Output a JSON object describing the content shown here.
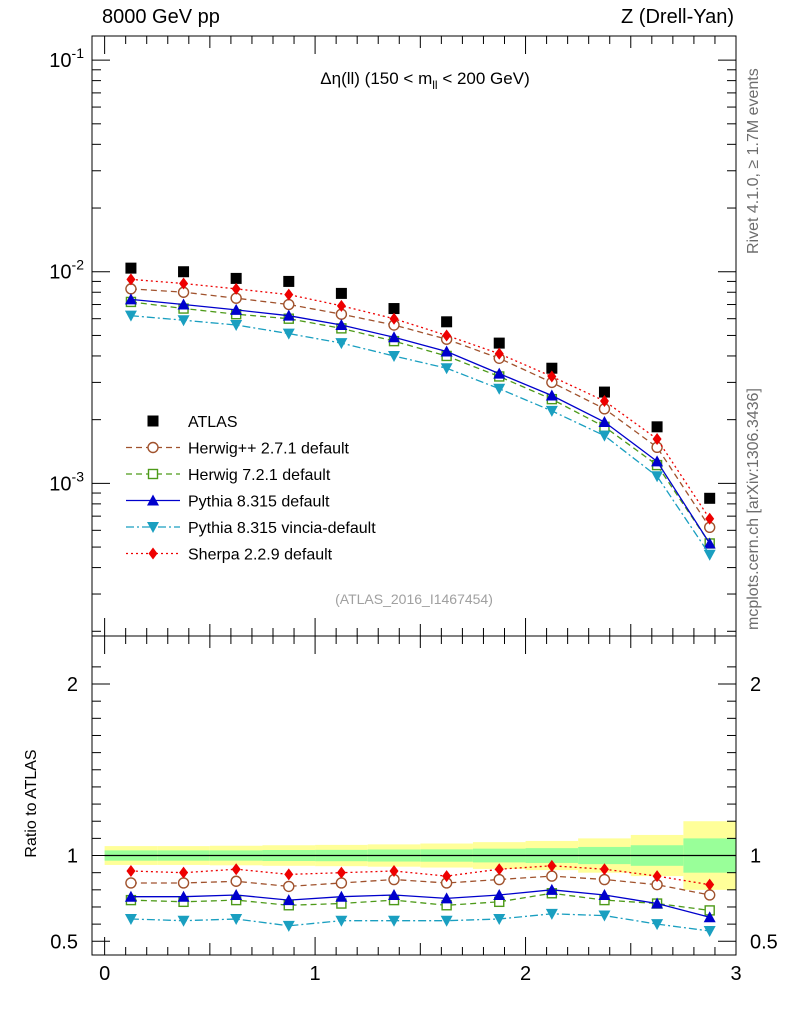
{
  "header": {
    "left": "8000 GeV pp",
    "right": "Z (Drell-Yan)"
  },
  "side_labels": {
    "rivet": "Rivet 4.1.0, ≥ 1.7M events",
    "mcplots": "mcplots.cern.ch [arXiv:1306.3436]"
  },
  "colors": {
    "atlas": "#000000",
    "herwigpp": "#a0522d",
    "herwig7": "#4d9a19",
    "pythia": "#0000cc",
    "vincia": "#1a9fc0",
    "sherpa": "#ee0000",
    "band_inner": "#99ff99",
    "band_outer": "#ffff99"
  },
  "chart_data": [
    {
      "type": "line",
      "title": "Δη(ll) (150 < m_ll < 200 GeV)",
      "title_parts": {
        "main": "Δη(ll) (150 < m",
        "sub": "ll",
        "tail": " < 200 GeV)"
      },
      "watermark": "(ATLAS_2016_I1467454)",
      "xlim": [
        -0.06,
        3.0
      ],
      "ylim": [
        0.00019,
        0.13
      ],
      "yscale": "log",
      "ytick_labels": [
        {
          "base": "10",
          "exp": "-1",
          "value": 0.1
        },
        {
          "base": "10",
          "exp": "-2",
          "value": 0.01
        },
        {
          "base": "10",
          "exp": "-3",
          "value": 0.001
        }
      ],
      "legend_position": "lower-left",
      "x": [
        0.125,
        0.375,
        0.625,
        0.875,
        1.125,
        1.375,
        1.625,
        1.875,
        2.125,
        2.375,
        2.625,
        2.875
      ],
      "series": [
        {
          "key": "atlas",
          "name": "ATLAS",
          "marker": "square",
          "line": "none",
          "values": [
            0.0104,
            0.01,
            0.0093,
            0.009,
            0.0079,
            0.0067,
            0.0058,
            0.0046,
            0.0035,
            0.0027,
            0.00185,
            0.00085
          ]
        },
        {
          "key": "herwigpp",
          "name": "Herwig++ 2.7.1 default",
          "marker": "open-circle",
          "line": "dashed",
          "values": [
            0.0083,
            0.008,
            0.0075,
            0.007,
            0.0063,
            0.0056,
            0.0048,
            0.0039,
            0.003,
            0.00225,
            0.00148,
            0.00062
          ]
        },
        {
          "key": "herwig7",
          "name": "Herwig 7.2.1 default",
          "marker": "open-square",
          "line": "dashed",
          "values": [
            0.0072,
            0.0067,
            0.0063,
            0.006,
            0.0054,
            0.0047,
            0.004,
            0.0032,
            0.0025,
            0.00185,
            0.00122,
            0.00052
          ]
        },
        {
          "key": "pythia",
          "name": "Pythia 8.315 default",
          "marker": "triangle-up",
          "line": "solid",
          "values": [
            0.0074,
            0.007,
            0.0066,
            0.0062,
            0.0056,
            0.0049,
            0.0042,
            0.0033,
            0.0026,
            0.00195,
            0.00127,
            0.00052
          ]
        },
        {
          "key": "vincia",
          "name": "Pythia 8.315 vincia-default",
          "marker": "triangle-down",
          "line": "dashdot",
          "values": [
            0.0062,
            0.0059,
            0.0056,
            0.0051,
            0.0046,
            0.004,
            0.0035,
            0.0028,
            0.0022,
            0.00168,
            0.00108,
            0.00046
          ]
        },
        {
          "key": "sherpa",
          "name": "Sherpa 2.2.9 default",
          "marker": "diamond",
          "line": "dotted",
          "values": [
            0.0092,
            0.0088,
            0.0083,
            0.0078,
            0.0069,
            0.006,
            0.005,
            0.0041,
            0.0032,
            0.00245,
            0.00162,
            0.00068
          ]
        }
      ]
    },
    {
      "type": "line",
      "title": "",
      "ylabel": "Ratio to ATLAS",
      "xlim": [
        -0.06,
        3.0
      ],
      "ylim": [
        0.42,
        2.28
      ],
      "xtick_labels": [
        "0",
        "1",
        "2",
        "3"
      ],
      "xticks": [
        0,
        1,
        2,
        3
      ],
      "ytick_labels": [
        "0.5",
        "1",
        "2"
      ],
      "yticks": [
        0.5,
        1,
        2
      ],
      "x": [
        0.125,
        0.375,
        0.625,
        0.875,
        1.125,
        1.375,
        1.625,
        1.875,
        2.125,
        2.375,
        2.625,
        2.875
      ],
      "band_edges": [
        0.0,
        0.25,
        0.5,
        0.75,
        1.0,
        1.25,
        1.5,
        1.75,
        2.0,
        2.25,
        2.5,
        2.75,
        3.0
      ],
      "band_inner_halfwidth": [
        0.03,
        0.03,
        0.03,
        0.032,
        0.033,
        0.035,
        0.036,
        0.04,
        0.043,
        0.05,
        0.06,
        0.1
      ],
      "band_outer_halfwidth": [
        0.055,
        0.055,
        0.057,
        0.06,
        0.062,
        0.065,
        0.07,
        0.078,
        0.085,
        0.1,
        0.12,
        0.2
      ],
      "series": [
        {
          "key": "herwigpp",
          "name": "Herwig++ 2.7.1 default",
          "marker": "open-circle",
          "line": "dashed",
          "values": [
            0.84,
            0.84,
            0.85,
            0.82,
            0.84,
            0.86,
            0.84,
            0.86,
            0.88,
            0.86,
            0.83,
            0.77
          ]
        },
        {
          "key": "herwig7",
          "name": "Herwig 7.2.1 default",
          "marker": "open-square",
          "line": "dashed",
          "values": [
            0.74,
            0.73,
            0.74,
            0.71,
            0.72,
            0.74,
            0.71,
            0.73,
            0.78,
            0.74,
            0.72,
            0.68
          ]
        },
        {
          "key": "pythia",
          "name": "Pythia 8.315 default",
          "marker": "triangle-up",
          "line": "solid",
          "values": [
            0.76,
            0.76,
            0.77,
            0.74,
            0.76,
            0.77,
            0.75,
            0.77,
            0.8,
            0.77,
            0.72,
            0.64
          ]
        },
        {
          "key": "vincia",
          "name": "Pythia 8.315 vincia-default",
          "marker": "triangle-down",
          "line": "dashdot",
          "values": [
            0.63,
            0.62,
            0.63,
            0.59,
            0.62,
            0.62,
            0.62,
            0.63,
            0.66,
            0.65,
            0.6,
            0.56
          ]
        },
        {
          "key": "sherpa",
          "name": "Sherpa 2.2.9 default",
          "marker": "diamond",
          "line": "dotted",
          "values": [
            0.91,
            0.9,
            0.92,
            0.89,
            0.9,
            0.91,
            0.88,
            0.92,
            0.94,
            0.92,
            0.88,
            0.83
          ]
        }
      ]
    }
  ]
}
